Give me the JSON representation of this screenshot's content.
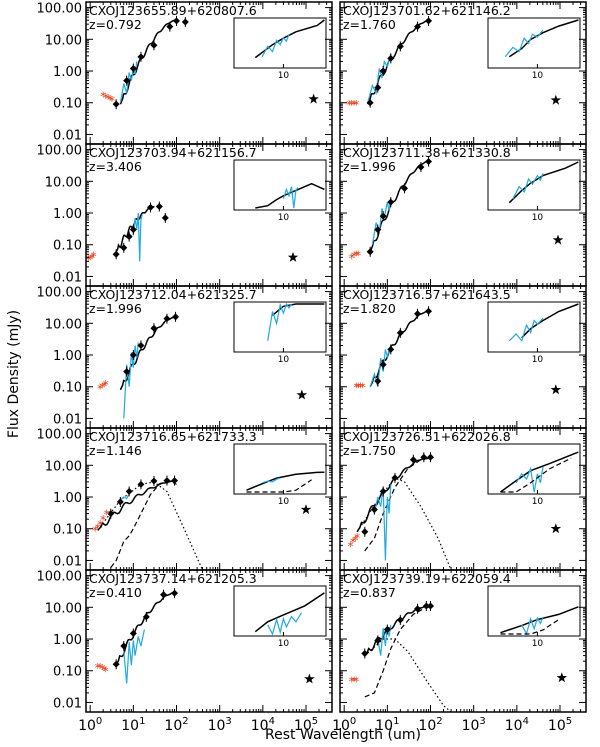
{
  "chart_data": {
    "type": "line",
    "title": "",
    "xlabel": "Rest Wavelength (um)",
    "ylabel": "Flux Density (mJy)",
    "x_log": true,
    "y_log": true,
    "xlim": [
      0.8,
      400000
    ],
    "ylim": [
      0.005,
      150
    ],
    "y_ticks": [
      0.01,
      0.1,
      1.0,
      10.0,
      100.0
    ],
    "y_tick_labels": [
      "0.01",
      "0.10",
      "1.00",
      "10.00",
      "100.00"
    ],
    "x_ticks": [
      1,
      10,
      100,
      1000,
      10000,
      100000
    ],
    "x_tick_labels": [
      "10^0",
      "10^1",
      "10^2",
      "10^3",
      "10^4",
      "10^5"
    ],
    "inset_tick_label": "10",
    "legend": {
      "sed_model": "solid black line",
      "agn_component": "dashed line",
      "host_component": "dotted line",
      "irs_spectrum": "cyan line",
      "optical_points": "red asterisks",
      "radio_point": "black star"
    },
    "panels": [
      {
        "name": "CXOJ123655.89+620807.6",
        "redshift": "z=0.792",
        "peak": [
          95,
          40
        ],
        "sed_start": [
          5,
          0.09
        ],
        "photometry": [
          [
            4,
            0.09
          ],
          [
            7,
            0.5
          ],
          [
            10,
            1.2
          ],
          [
            15,
            2.8
          ],
          [
            30,
            6.5
          ],
          [
            70,
            25
          ],
          [
            100,
            38
          ],
          [
            160,
            35
          ]
        ],
        "optical": [
          [
            2.0,
            0.17
          ],
          [
            2.3,
            0.15
          ],
          [
            2.6,
            0.14
          ],
          [
            2.9,
            0.13
          ],
          [
            3.2,
            0.12
          ]
        ],
        "spectrum": [
          [
            5,
            0.1
          ],
          [
            6,
            0.4
          ],
          [
            7,
            0.2
          ],
          [
            8,
            0.9
          ],
          [
            9,
            0.5
          ],
          [
            10,
            1.3
          ],
          [
            11,
            0.8
          ],
          [
            12,
            2.0
          ]
        ],
        "radio": [
          150000,
          0.13
        ],
        "agn": false,
        "host": false
      },
      {
        "name": "CXOJ123701.62+621146.2",
        "redshift": "z=1.760",
        "peak": [
          95,
          40
        ],
        "sed_start": [
          3.5,
          0.09
        ],
        "photometry": [
          [
            4,
            0.1
          ],
          [
            6,
            0.3
          ],
          [
            8,
            1.0
          ],
          [
            12,
            2.5
          ],
          [
            20,
            6
          ],
          [
            50,
            25
          ],
          [
            90,
            38
          ]
        ],
        "optical": [
          [
            1.3,
            0.09
          ],
          [
            1.5,
            0.09
          ],
          [
            1.7,
            0.09
          ],
          [
            1.9,
            0.09
          ]
        ],
        "spectrum": [
          [
            3.5,
            0.1
          ],
          [
            4.5,
            0.35
          ],
          [
            5.5,
            0.2
          ],
          [
            6.5,
            1.2
          ],
          [
            7.5,
            0.6
          ],
          [
            8.5,
            2.0
          ],
          [
            10,
            1.4
          ],
          [
            12,
            3.5
          ]
        ],
        "radio": [
          80000,
          0.12
        ],
        "agn": false,
        "host": false
      },
      {
        "name": "CXOJ123703.94+621156.7",
        "redshift": "z=3.406",
        "peak": [
          32,
          1.6
        ],
        "sed_start": [
          4,
          0.06
        ],
        "photometry": [
          [
            4,
            0.05
          ],
          [
            6,
            0.08
          ],
          [
            8,
            0.18
          ],
          [
            10,
            0.3
          ],
          [
            25,
            1.5
          ],
          [
            40,
            1.6
          ],
          [
            55,
            0.7
          ]
        ],
        "optical": [
          [
            0.9,
            0.035
          ],
          [
            1.0,
            0.037
          ],
          [
            1.1,
            0.04
          ],
          [
            1.2,
            0.045
          ]
        ],
        "spectrum": [
          [
            10,
            0.2
          ],
          [
            11,
            0.7
          ],
          [
            12,
            0.3
          ],
          [
            13,
            1.0
          ],
          [
            14,
            0.03
          ],
          [
            15,
            0.6
          ],
          [
            16,
            0.9
          ]
        ],
        "radio": [
          50000,
          0.04
        ],
        "agn": false,
        "host": false
      },
      {
        "name": "CXOJ123711.38+621330.8",
        "redshift": "z=1.996",
        "peak": [
          95,
          45
        ],
        "sed_start": [
          4,
          0.06
        ],
        "photometry": [
          [
            4,
            0.06
          ],
          [
            6,
            0.3
          ],
          [
            8,
            0.8
          ],
          [
            12,
            2.2
          ],
          [
            25,
            6
          ],
          [
            60,
            28
          ],
          [
            90,
            42
          ]
        ],
        "optical": [
          [
            1.5,
            0.04
          ],
          [
            1.7,
            0.045
          ],
          [
            1.9,
            0.05
          ],
          [
            2.1,
            0.05
          ]
        ],
        "spectrum": [
          [
            4.5,
            0.1
          ],
          [
            5.5,
            0.5
          ],
          [
            6.5,
            0.25
          ],
          [
            7.5,
            1.4
          ],
          [
            8.5,
            0.7
          ],
          [
            10,
            2.2
          ],
          [
            11,
            1.2
          ],
          [
            12,
            3
          ]
        ],
        "radio": [
          90000,
          0.14
        ],
        "agn": false,
        "host": false
      },
      {
        "name": "CXOJ123712.04+621325.7",
        "redshift": "z=1.996",
        "peak": [
          95,
          16
        ],
        "sed_start": [
          5,
          0.08
        ],
        "photometry": [
          [
            7,
            0.3
          ],
          [
            10,
            1.0
          ],
          [
            15,
            2.0
          ],
          [
            30,
            7
          ],
          [
            60,
            14
          ],
          [
            95,
            16
          ]
        ],
        "optical": [
          [
            1.7,
            0.09
          ],
          [
            1.9,
            0.1
          ],
          [
            2.1,
            0.11
          ],
          [
            2.3,
            0.12
          ]
        ],
        "spectrum": [
          [
            6,
            0.01
          ],
          [
            7,
            0.5
          ],
          [
            8,
            0.1
          ],
          [
            9,
            1.2
          ],
          [
            10,
            0.4
          ],
          [
            11,
            2
          ],
          [
            12,
            0.8
          ],
          [
            13,
            2.5
          ]
        ],
        "radio": [
          80000,
          0.055
        ],
        "agn": false,
        "host": false
      },
      {
        "name": "CXOJ123716.57+621643.5",
        "redshift": "z=1.820",
        "peak": [
          95,
          25
        ],
        "sed_start": [
          4,
          0.1
        ],
        "photometry": [
          [
            6,
            0.15
          ],
          [
            8,
            0.5
          ],
          [
            12,
            1.5
          ],
          [
            20,
            5
          ],
          [
            50,
            20
          ],
          [
            90,
            24
          ]
        ],
        "optical": [
          [
            1.9,
            0.1
          ],
          [
            2.1,
            0.1
          ],
          [
            2.4,
            0.1
          ],
          [
            2.7,
            0.1
          ]
        ],
        "spectrum": [
          [
            4,
            0.1
          ],
          [
            5,
            0.25
          ],
          [
            6,
            0.1
          ],
          [
            7,
            0.8
          ],
          [
            8,
            0.3
          ],
          [
            9,
            1.5
          ],
          [
            10,
            0.9
          ],
          [
            12,
            2
          ]
        ],
        "radio": [
          80000,
          0.08
        ],
        "agn": false,
        "host": false
      },
      {
        "name": "CXOJ123716.65+621733.3",
        "redshift": "z=1.146",
        "peak": [
          90,
          3.2
        ],
        "sed_start": [
          1.5,
          0.09
        ],
        "photometry": [
          [
            3,
            0.3
          ],
          [
            5,
            0.7
          ],
          [
            8,
            1.5
          ],
          [
            15,
            2.5
          ],
          [
            30,
            3.2
          ],
          [
            60,
            3.3
          ],
          [
            90,
            3.3
          ]
        ],
        "optical": [
          [
            1.3,
            0.09
          ],
          [
            1.5,
            0.11
          ],
          [
            1.7,
            0.14
          ],
          [
            2.0,
            0.2
          ],
          [
            2.4,
            0.3
          ]
        ],
        "spectrum": [
          [
            5,
            0.8
          ],
          [
            6,
            1.0
          ],
          [
            7,
            0.9
          ],
          [
            8,
            1.3
          ],
          [
            9,
            1.5
          ]
        ],
        "agn_curve": [
          [
            3,
            0.006
          ],
          [
            4,
            0.01
          ],
          [
            6,
            0.04
          ],
          [
            8,
            0.06
          ],
          [
            10,
            0.1
          ],
          [
            15,
            0.3
          ],
          [
            25,
            1.2
          ],
          [
            40,
            2.5
          ],
          [
            70,
            3.2
          ],
          [
            100,
            2.5
          ]
        ],
        "host_curve": [
          [
            1.5,
            0.09
          ],
          [
            5,
            0.8
          ],
          [
            15,
            2.5
          ],
          [
            30,
            3.0
          ],
          [
            60,
            1.5
          ],
          [
            150,
            0.1
          ],
          [
            400,
            0.005
          ]
        ],
        "radio": [
          100000,
          0.4
        ],
        "agn": true,
        "host": true
      },
      {
        "name": "CXOJ123726.51+622026.8",
        "redshift": "z=1.750",
        "peak": [
          90,
          18
        ],
        "sed_start": [
          2,
          0.08
        ],
        "photometry": [
          [
            3,
            0.08
          ],
          [
            5,
            0.4
          ],
          [
            8,
            1.5
          ],
          [
            15,
            4
          ],
          [
            40,
            15
          ],
          [
            70,
            18
          ],
          [
            100,
            18
          ]
        ],
        "optical": [
          [
            1.4,
            0.03
          ],
          [
            1.6,
            0.04
          ],
          [
            1.8,
            0.045
          ],
          [
            2.0,
            0.055
          ]
        ],
        "spectrum": [
          [
            5,
            0.3
          ],
          [
            6,
            1.0
          ],
          [
            7,
            0.5
          ],
          [
            8,
            2.0
          ],
          [
            9,
            0.01
          ],
          [
            10,
            1.0
          ],
          [
            11,
            0.3
          ],
          [
            12,
            2.5
          ]
        ],
        "agn_curve": [
          [
            3,
            0.02
          ],
          [
            5,
            0.05
          ],
          [
            8,
            0.3
          ],
          [
            15,
            2
          ],
          [
            30,
            8
          ],
          [
            60,
            15
          ],
          [
            100,
            17
          ]
        ],
        "host_curve": [
          [
            2,
            0.08
          ],
          [
            6,
            0.8
          ],
          [
            15,
            4
          ],
          [
            25,
            3
          ],
          [
            60,
            0.5
          ],
          [
            150,
            0.05
          ],
          [
            300,
            0.005
          ]
        ],
        "radio": [
          80000,
          0.1
        ],
        "agn": true,
        "host": true
      },
      {
        "name": "CXOJ123737.14+621205.3",
        "redshift": "z=0.410",
        "peak": [
          95,
          30
        ],
        "sed_start": [
          4,
          0.15
        ],
        "photometry": [
          [
            4,
            0.16
          ],
          [
            6,
            0.6
          ],
          [
            10,
            1.5
          ],
          [
            20,
            5
          ],
          [
            50,
            25
          ],
          [
            90,
            28
          ]
        ],
        "optical": [
          [
            1.5,
            0.13
          ],
          [
            1.7,
            0.13
          ],
          [
            1.9,
            0.12
          ],
          [
            2.1,
            0.11
          ],
          [
            2.3,
            0.1
          ]
        ],
        "spectrum": [
          [
            6,
            0.4
          ],
          [
            7,
            0.04
          ],
          [
            8,
            0.8
          ],
          [
            9,
            0.15
          ],
          [
            10,
            0.9
          ],
          [
            11,
            0.3
          ],
          [
            13,
            1.2
          ],
          [
            15,
            0.6
          ],
          [
            18,
            2
          ]
        ],
        "radio": [
          120000,
          0.055
        ],
        "agn": false,
        "host": false
      },
      {
        "name": "CXOJ123739.19+622059.4",
        "redshift": "z=0.837",
        "peak": [
          90,
          11
        ],
        "sed_start": [
          3,
          0.3
        ],
        "photometry": [
          [
            3,
            0.35
          ],
          [
            6,
            0.9
          ],
          [
            10,
            2.0
          ],
          [
            20,
            4
          ],
          [
            50,
            9
          ],
          [
            80,
            11
          ],
          [
            100,
            11
          ]
        ],
        "optical": [
          [
            1.5,
            0.05
          ],
          [
            1.7,
            0.05
          ],
          [
            1.9,
            0.05
          ]
        ],
        "spectrum": [
          [
            6,
            1.0
          ],
          [
            7,
            0.3
          ],
          [
            8,
            2.2
          ],
          [
            9,
            0.6
          ],
          [
            10,
            2.5
          ],
          [
            11,
            1.2
          ],
          [
            12,
            2.8
          ]
        ],
        "agn_curve": [
          [
            3,
            0.015
          ],
          [
            5,
            0.02
          ],
          [
            8,
            0.1
          ],
          [
            12,
            0.5
          ],
          [
            20,
            2
          ],
          [
            40,
            6
          ],
          [
            80,
            10
          ],
          [
            100,
            10
          ]
        ],
        "host_curve": [
          [
            3,
            0.3
          ],
          [
            8,
            1.0
          ],
          [
            15,
            1.0
          ],
          [
            30,
            0.4
          ],
          [
            80,
            0.05
          ],
          [
            200,
            0.008
          ],
          [
            300,
            0.005
          ]
        ],
        "radio": [
          110000,
          0.06
        ],
        "agn": true,
        "host": true
      }
    ]
  }
}
